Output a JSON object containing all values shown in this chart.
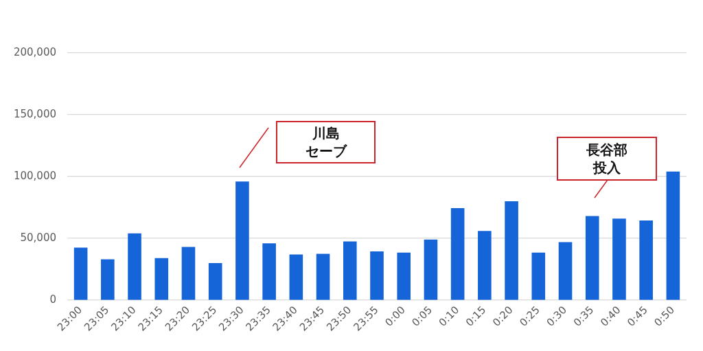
{
  "chart_data": {
    "type": "bar",
    "categories": [
      "23:00",
      "23:05",
      "23:10",
      "23:15",
      "23:20",
      "23:25",
      "23:30",
      "23:35",
      "23:40",
      "23:45",
      "23:50",
      "23:55",
      "0:00",
      "0:05",
      "0:10",
      "0:15",
      "0:20",
      "0:25",
      "0:30",
      "0:35",
      "0:40",
      "0:45",
      "0:50"
    ],
    "values": [
      42500,
      33000,
      54000,
      34000,
      43000,
      30000,
      96000,
      46000,
      37000,
      37500,
      47500,
      39500,
      38500,
      49000,
      74500,
      56000,
      80000,
      38500,
      47000,
      68000,
      66000,
      64500,
      104000
    ],
    "color": "#1565d8",
    "ylim": [
      0,
      200000
    ],
    "yticks": [
      {
        "value": 0,
        "label": "0"
      },
      {
        "value": 50000,
        "label": "50,000"
      },
      {
        "value": 100000,
        "label": "100,000"
      },
      {
        "value": 150000,
        "label": "150,000"
      },
      {
        "value": 200000,
        "label": "200,000"
      }
    ],
    "grid": "y",
    "annotations": [
      "川島セーブ",
      "長谷部投入"
    ]
  }
}
